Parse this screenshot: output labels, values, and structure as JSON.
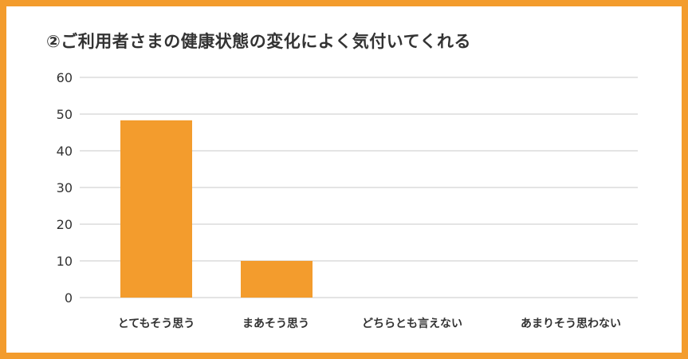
{
  "chart_data": {
    "type": "bar",
    "title": "②ご利用者さまの健康状態の変化によく気付いてくれる",
    "categories": [
      "とてもそう思う",
      "まあそう思う",
      "どちらとも言えない",
      "あまりそう思わない"
    ],
    "values": [
      48.3,
      10,
      0,
      0
    ],
    "yticks": [
      "0",
      "10",
      "20",
      "30",
      "40",
      "50",
      "60"
    ],
    "ylim": [
      0,
      60
    ],
    "xlabel": "",
    "ylabel": "",
    "grid": true,
    "bar_color": "#f39c2d",
    "border_color": "#f39c2d"
  }
}
